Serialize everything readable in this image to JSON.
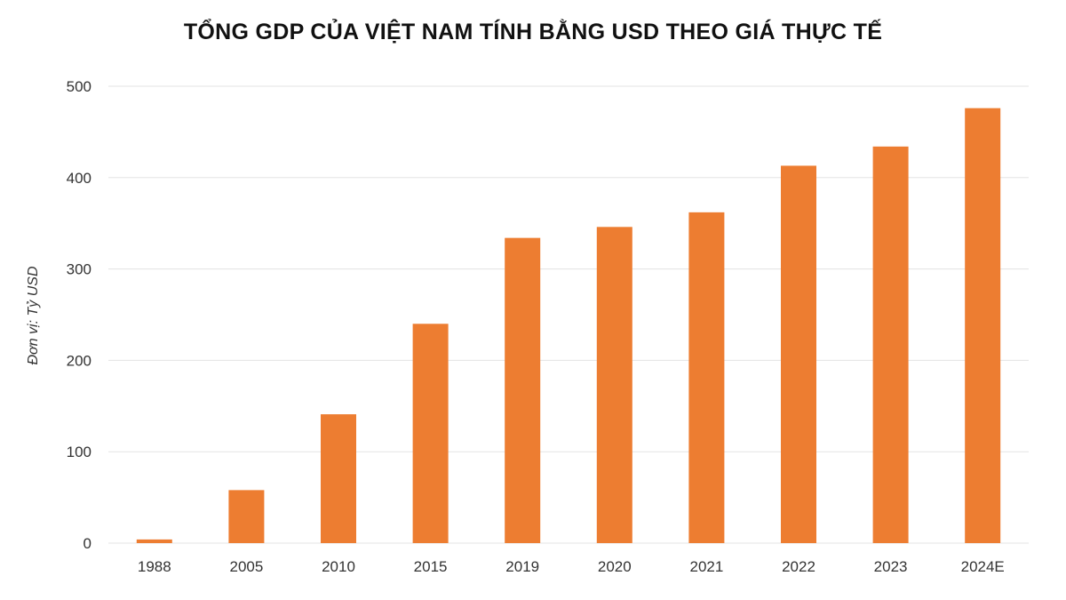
{
  "chart_data": {
    "type": "bar",
    "title": "TỔNG GDP CỦA VIỆT NAM TÍNH BẰNG USD THEO GIÁ THỰC TẾ",
    "ylabel": "Đơn vị: Tỷ USD",
    "xlabel": "",
    "categories": [
      "1988",
      "2005",
      "2010",
      "2015",
      "2019",
      "2020",
      "2021",
      "2022",
      "2023",
      "2024E"
    ],
    "values": [
      4,
      58,
      141,
      240,
      334,
      346,
      362,
      413,
      434,
      476
    ],
    "ylim": [
      0,
      500
    ],
    "yticks": [
      "0",
      "100",
      "200",
      "300",
      "400",
      "500"
    ],
    "grid": true,
    "bar_color": "#ED7D31",
    "grid_color": "#E3E3E3"
  }
}
